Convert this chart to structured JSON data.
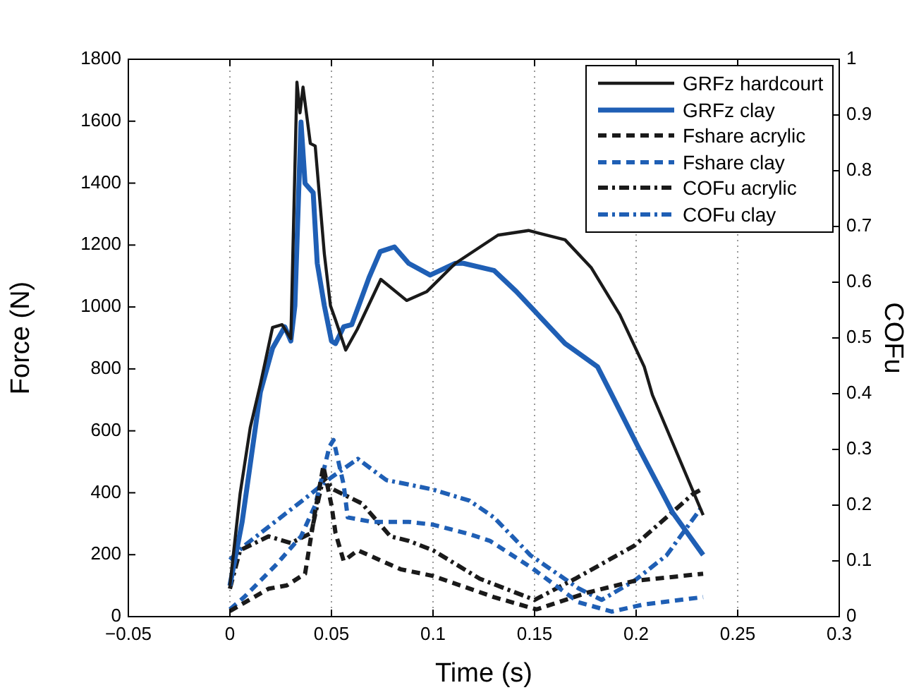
{
  "chart_data": {
    "type": "line",
    "xlabel": "Time (s)",
    "ylabel": "Force (N)",
    "y2label": "COFu",
    "xlim": [
      -0.05,
      0.3
    ],
    "xticks": [
      {
        "value": -0.05,
        "label": "−0.05"
      },
      0,
      0.05,
      0.1,
      0.15,
      0.2,
      0.25,
      0.3
    ],
    "ylim": [
      0,
      1800
    ],
    "yticks": [
      0,
      200,
      400,
      600,
      800,
      1000,
      1200,
      1400,
      1600,
      1800
    ],
    "y2lim": [
      0,
      1
    ],
    "y2ticks": [
      0,
      0.1,
      0.2,
      0.3,
      0.4,
      0.5,
      0.6,
      0.7,
      0.8,
      0.9,
      1
    ],
    "grid": "x",
    "legend": "top right",
    "marker": "none",
    "series": [
      {
        "name": "GRFz hardcourt",
        "color": "#1a1a1a",
        "line_style": "solid",
        "x": [
          0,
          0.005,
          0.01,
          0.015,
          0.021,
          0.0257,
          0.03,
          0.033,
          0.0345,
          0.036,
          0.0396,
          0.042,
          0.0465,
          0.0495,
          0.052,
          0.057,
          0.0627,
          0.0743,
          0.087,
          0.097,
          0.111,
          0.132,
          0.147,
          0.165,
          0.178,
          0.192,
          0.204,
          0.208,
          0.233
        ],
        "values": [
          100,
          396,
          610,
          750,
          934,
          943,
          898,
          1726,
          1627,
          1710,
          1528,
          1520,
          1171,
          1004,
          958,
          861,
          928,
          1089,
          1021,
          1050,
          1141,
          1232,
          1247,
          1217,
          1126,
          975,
          807,
          716,
          328
        ]
      },
      {
        "name": "GRFz clay",
        "color": "#1f5fb5",
        "line_style": "solid",
        "x": [
          0,
          0.006,
          0.015,
          0.021,
          0.027,
          0.03,
          0.032,
          0.035,
          0.037,
          0.041,
          0.043,
          0.0465,
          0.05,
          0.052,
          0.056,
          0.06,
          0.0685,
          0.074,
          0.081,
          0.088,
          0.0986,
          0.111,
          0.115,
          0.13,
          0.141,
          0.165,
          0.181,
          0.1875,
          0.201,
          0.218,
          0.233
        ],
        "values": [
          100,
          305,
          725,
          867,
          936,
          890,
          1004,
          1597,
          1399,
          1369,
          1141,
          1004,
          890,
          882,
          936,
          943,
          1095,
          1179,
          1194,
          1141,
          1103,
          1141,
          1141,
          1118,
          1050,
          882,
          807,
          723,
          548,
          336,
          199
        ]
      },
      {
        "name": "Fshare acrylic",
        "color": "#1a1a1a",
        "line_style": "dashed",
        "axis": "y2",
        "x": [
          0,
          0.019,
          0.028,
          0.037,
          0.042,
          0.046,
          0.05,
          0.052,
          0.056,
          0.063,
          0.084,
          0.1,
          0.13,
          0.151,
          0.176,
          0.199,
          0.233
        ],
        "values": [
          0.01,
          0.05,
          0.056,
          0.077,
          0.19,
          0.27,
          0.2,
          0.15,
          0.1,
          0.119,
          0.085,
          0.073,
          0.035,
          0.013,
          0.043,
          0.064,
          0.077
        ]
      },
      {
        "name": "Fshare clay",
        "color": "#1f5fb5",
        "line_style": "dashed",
        "axis": "y2",
        "x": [
          0,
          0.007,
          0.023,
          0.035,
          0.042,
          0.049,
          0.051,
          0.056,
          0.058,
          0.07,
          0.088,
          0.1,
          0.118,
          0.128,
          0.148,
          0.1715,
          0.188,
          0.204,
          0.233
        ],
        "values": [
          0.013,
          0.035,
          0.094,
          0.144,
          0.2,
          0.305,
          0.317,
          0.237,
          0.178,
          0.17,
          0.17,
          0.165,
          0.148,
          0.136,
          0.089,
          0.026,
          0.009,
          0.022,
          0.035
        ]
      },
      {
        "name": "COFu acrylic",
        "color": "#1a1a1a",
        "line_style": "dashdot",
        "axis": "y2",
        "x": [
          0,
          0.005,
          0.019,
          0.03,
          0.04,
          0.046,
          0.051,
          0.065,
          0.079,
          0.088,
          0.1,
          0.123,
          0.15,
          0.17,
          0.199,
          0.228,
          0.233
        ],
        "values": [
          0.05,
          0.119,
          0.144,
          0.132,
          0.15,
          0.25,
          0.228,
          0.203,
          0.144,
          0.136,
          0.119,
          0.068,
          0.03,
          0.068,
          0.127,
          0.22,
          0.23
        ]
      },
      {
        "name": "COFu clay",
        "color": "#1f5fb5",
        "line_style": "dashdot",
        "axis": "y2",
        "x": [
          0,
          0.007,
          0.019,
          0.037,
          0.05,
          0.063,
          0.077,
          0.088,
          0.1,
          0.118,
          0.13,
          0.148,
          0.1715,
          0.183,
          0.199,
          0.215,
          0.232
        ],
        "values": [
          0.102,
          0.127,
          0.161,
          0.212,
          0.25,
          0.283,
          0.245,
          0.237,
          0.228,
          0.208,
          0.178,
          0.11,
          0.051,
          0.03,
          0.064,
          0.11,
          0.195
        ]
      }
    ]
  }
}
